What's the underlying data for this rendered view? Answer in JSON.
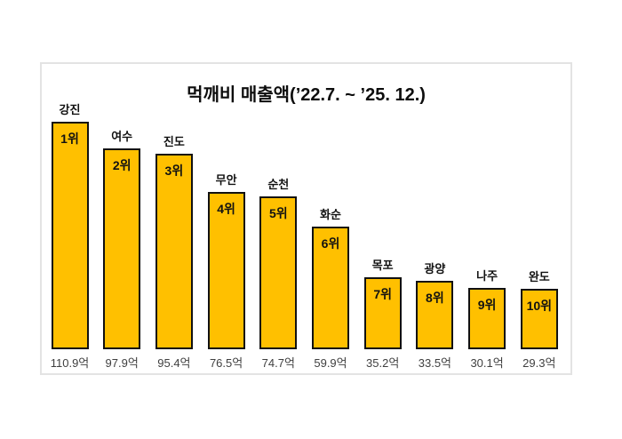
{
  "chart_data": {
    "type": "bar",
    "title": "먹깨비 매출액(’22.7. ~ ’25. 12.)",
    "categories": [
      "강진",
      "여수",
      "진도",
      "무안",
      "순천",
      "화순",
      "목포",
      "광양",
      "나주",
      "완도"
    ],
    "values": [
      110.9,
      97.9,
      95.4,
      76.5,
      74.7,
      59.9,
      35.2,
      33.5,
      30.1,
      29.3
    ],
    "rank_labels": [
      "1위",
      "2위",
      "3위",
      "4위",
      "5위",
      "6위",
      "7위",
      "8위",
      "9위",
      "10위"
    ],
    "value_labels": [
      "110.9억",
      "97.9억",
      "95.4억",
      "76.5억",
      "74.7억",
      "59.9억",
      "35.2억",
      "33.5억",
      "30.1억",
      "29.3억"
    ],
    "unit": "억",
    "xlabel": "",
    "ylabel": "",
    "ylim": [
      0,
      115
    ],
    "grid": false,
    "legend": "none",
    "bar_color": "#FFC000",
    "bar_border_color": "#111111",
    "category_label_color": "#111111",
    "rank_label_color": "#111111",
    "value_label_color": "#3F3F3F",
    "panel_border_color": "#E3E3E3",
    "title_color": "#0D0D0D"
  }
}
